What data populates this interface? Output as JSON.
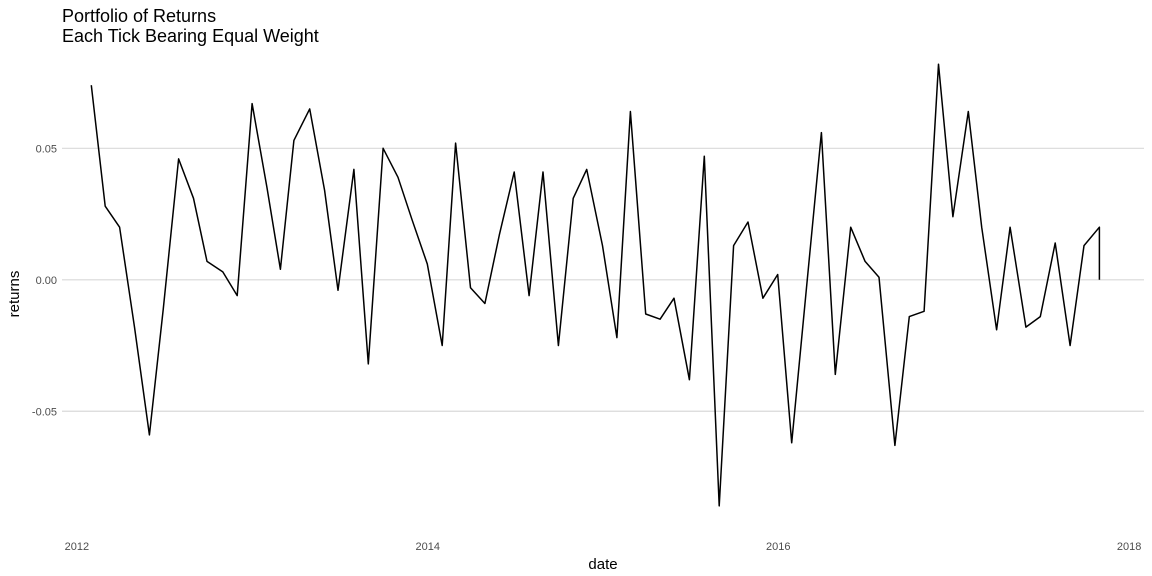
{
  "chart_data": {
    "type": "line",
    "title": "Portfolio of Returns",
    "subtitle": "Each Tick Bearing Equal Weight",
    "xlabel": "date",
    "ylabel": "returns",
    "xlim": [
      "2011-12-01",
      "2018-02-01"
    ],
    "ylim": [
      -0.0925,
      0.0855
    ],
    "x_ticks": [
      {
        "value": "2012-01-01",
        "label": "2012"
      },
      {
        "value": "2014-01-01",
        "label": "2014"
      },
      {
        "value": "2016-01-01",
        "label": "2016"
      },
      {
        "value": "2018-01-01",
        "label": "2018"
      }
    ],
    "y_ticks": [
      {
        "value": -0.05,
        "label": "-0.05"
      },
      {
        "value": 0.0,
        "label": "0.00"
      },
      {
        "value": 0.05,
        "label": "0.05"
      }
    ],
    "grid": true,
    "line_color": "#000000",
    "series": [
      {
        "x": [
          "2012-01-31",
          "2012-02-29",
          "2012-03-30",
          "2012-04-30",
          "2012-05-31",
          "2012-06-29",
          "2012-07-31",
          "2012-08-31",
          "2012-09-28",
          "2012-10-31",
          "2012-11-30",
          "2012-12-31",
          "2013-01-31",
          "2013-02-28",
          "2013-03-28",
          "2013-04-30",
          "2013-05-31",
          "2013-06-28",
          "2013-07-31",
          "2013-08-30",
          "2013-09-30",
          "2013-10-31",
          "2013-11-29",
          "2013-12-31",
          "2014-01-31",
          "2014-02-28",
          "2014-03-31",
          "2014-04-30",
          "2014-05-30",
          "2014-06-30",
          "2014-07-31",
          "2014-08-29",
          "2014-09-30",
          "2014-10-31",
          "2014-11-28",
          "2014-12-31",
          "2015-01-30",
          "2015-02-27",
          "2015-03-31",
          "2015-04-30",
          "2015-05-29",
          "2015-06-30",
          "2015-07-31",
          "2015-08-31",
          "2015-09-30",
          "2015-10-30",
          "2015-11-30",
          "2015-12-31",
          "2016-01-29",
          "2016-02-29",
          "2016-03-31",
          "2016-04-29",
          "2016-05-31",
          "2016-06-30",
          "2016-07-29",
          "2016-08-31",
          "2016-09-30",
          "2016-10-31",
          "2016-11-30",
          "2016-12-30",
          "2017-01-31",
          "2017-02-28",
          "2017-03-31",
          "2017-04-28",
          "2017-05-31",
          "2017-06-30",
          "2017-07-31",
          "2017-08-31",
          "2017-09-29",
          "2017-10-31",
          "2017-10-31"
        ],
        "values": [
          0.074,
          0.028,
          0.02,
          -0.018,
          -0.059,
          -0.011,
          0.046,
          0.031,
          0.007,
          0.003,
          -0.006,
          0.067,
          0.035,
          0.004,
          0.053,
          0.065,
          0.034,
          -0.004,
          0.042,
          -0.032,
          0.05,
          0.039,
          0.023,
          0.006,
          -0.025,
          0.052,
          -0.003,
          -0.009,
          0.017,
          0.041,
          -0.006,
          0.041,
          -0.025,
          0.031,
          0.042,
          0.013,
          -0.022,
          0.064,
          -0.013,
          -0.015,
          -0.007,
          -0.038,
          0.047,
          -0.086,
          0.013,
          0.022,
          -0.007,
          0.002,
          -0.062,
          -0.003,
          0.056,
          -0.036,
          0.02,
          0.007,
          0.001,
          -0.063,
          -0.014,
          -0.012,
          0.082,
          0.024,
          0.064,
          0.02,
          -0.019,
          0.02,
          -0.018,
          -0.014,
          0.014,
          -0.025,
          0.013,
          0.02,
          0.0
        ]
      }
    ]
  }
}
